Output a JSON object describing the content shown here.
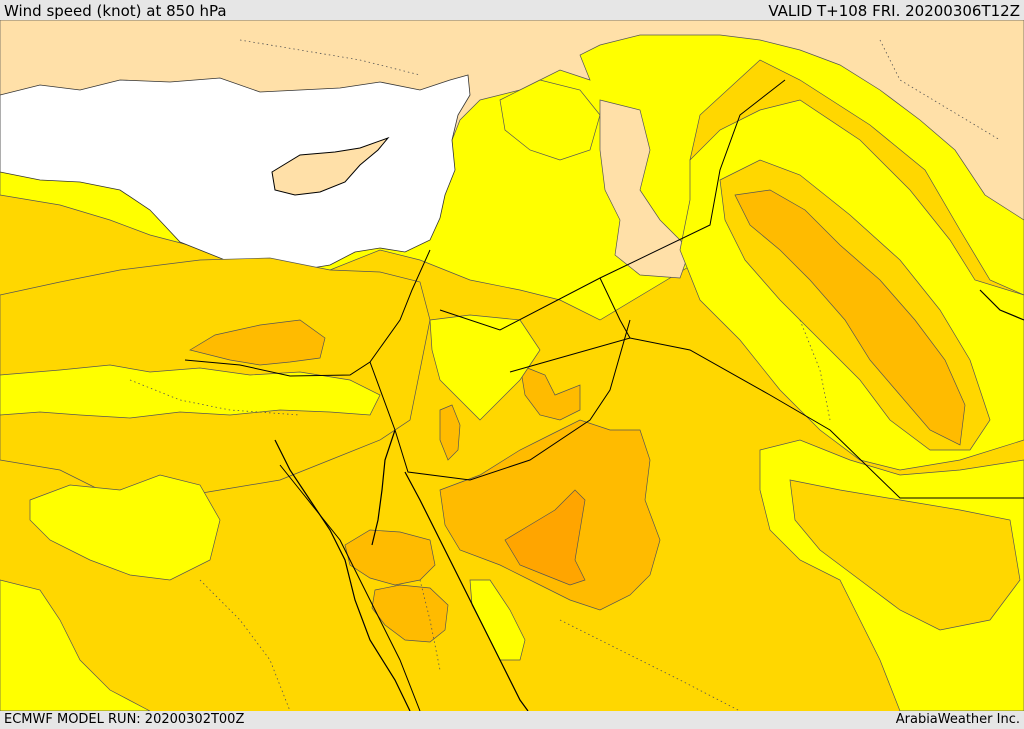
{
  "header": {
    "title": "Wind speed (knot) at 850 hPa",
    "valid": "VALID T+108 FRI. 20200306T12Z"
  },
  "footer": {
    "model_run": "ECMWF MODEL RUN: 20200302T00Z",
    "credit": "ArabiaWeather Inc."
  },
  "colors": {
    "speed_band_1": "#ffe0a8",
    "speed_band_2": "#ffff00",
    "speed_band_3": "#ffd700",
    "speed_band_4": "#ffbb00",
    "speed_band_5": "#ffa500",
    "sea": "#ffffff"
  }
}
